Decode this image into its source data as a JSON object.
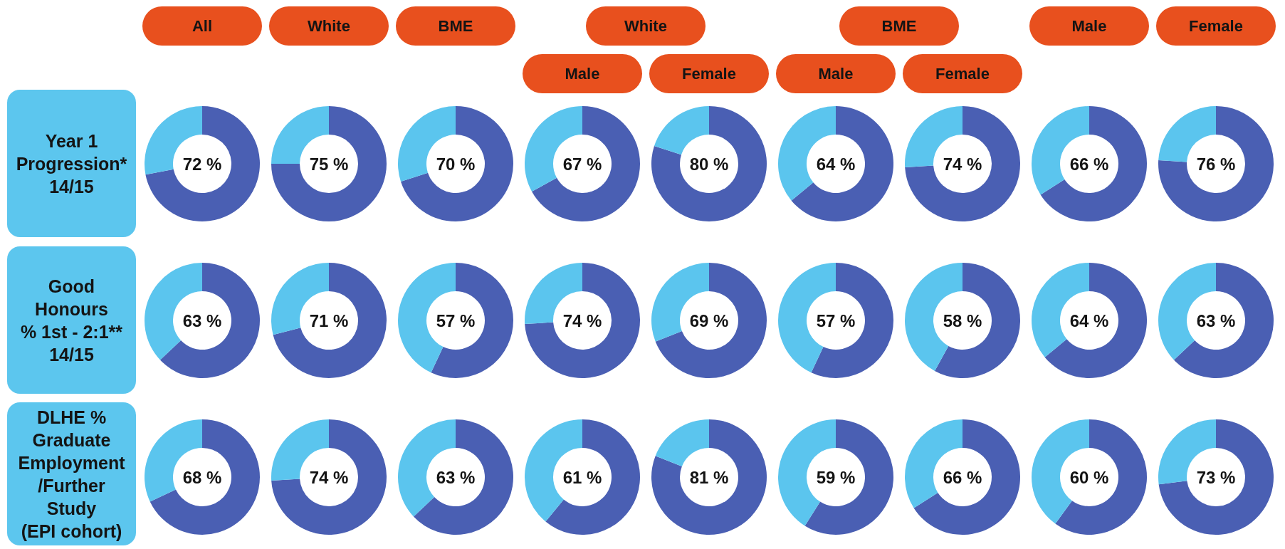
{
  "chart_data": [
    {
      "type": "other",
      "annotations": [
        "All",
        "White",
        "BME",
        "White",
        "BME",
        "Male",
        "Female"
      ]
    },
    {
      "type": "other",
      "annotations": [
        "Male",
        "Female",
        "Male",
        "Female"
      ]
    },
    {
      "type": "other",
      "title": "Year 1\nProgression*\n14/15"
    },
    {
      "type": "donut",
      "categories": [
        null,
        null
      ],
      "values": [
        72,
        28
      ],
      "colors": [
        "#4a5fb3",
        "#5bc5ee"
      ],
      "annotations": [
        "72 %"
      ]
    },
    {
      "type": "donut",
      "categories": [
        null,
        null
      ],
      "values": [
        75,
        25
      ],
      "colors": [
        "#4a5fb3",
        "#5bc5ee"
      ],
      "annotations": [
        "75 %"
      ]
    },
    {
      "type": "donut",
      "categories": [
        null,
        null
      ],
      "values": [
        70,
        30
      ],
      "colors": [
        "#4a5fb3",
        "#5bc5ee"
      ],
      "annotations": [
        "70 %"
      ]
    },
    {
      "type": "donut",
      "categories": [
        null,
        null
      ],
      "values": [
        67,
        33
      ],
      "colors": [
        "#4a5fb3",
        "#5bc5ee"
      ],
      "annotations": [
        "67 %"
      ]
    },
    {
      "type": "donut",
      "categories": [
        null,
        null
      ],
      "values": [
        80,
        20
      ],
      "colors": [
        "#4a5fb3",
        "#5bc5ee"
      ],
      "annotations": [
        "80 %"
      ]
    },
    {
      "type": "donut",
      "categories": [
        null,
        null
      ],
      "values": [
        64,
        36
      ],
      "colors": [
        "#4a5fb3",
        "#5bc5ee"
      ],
      "annotations": [
        "64 %"
      ]
    },
    {
      "type": "donut",
      "categories": [
        null,
        null
      ],
      "values": [
        74,
        26
      ],
      "colors": [
        "#4a5fb3",
        "#5bc5ee"
      ],
      "annotations": [
        "74 %"
      ]
    },
    {
      "type": "donut",
      "categories": [
        null,
        null
      ],
      "values": [
        66,
        34
      ],
      "colors": [
        "#4a5fb3",
        "#5bc5ee"
      ],
      "annotations": [
        "66 %"
      ]
    },
    {
      "type": "donut",
      "categories": [
        null,
        null
      ],
      "values": [
        76,
        24
      ],
      "colors": [
        "#4a5fb3",
        "#5bc5ee"
      ],
      "annotations": [
        "76 %"
      ]
    },
    {
      "type": "other",
      "title": "Good\nHonours\n% 1st - 2:1**\n14/15"
    },
    {
      "type": "donut",
      "categories": [
        null,
        null
      ],
      "values": [
        63,
        37
      ],
      "colors": [
        "#4a5fb3",
        "#5bc5ee"
      ],
      "annotations": [
        "63 %"
      ]
    },
    {
      "type": "donut",
      "categories": [
        null,
        null
      ],
      "values": [
        71,
        29
      ],
      "colors": [
        "#4a5fb3",
        "#5bc5ee"
      ],
      "annotations": [
        "71 %"
      ]
    },
    {
      "type": "donut",
      "categories": [
        null,
        null
      ],
      "values": [
        57,
        43
      ],
      "colors": [
        "#4a5fb3",
        "#5bc5ee"
      ],
      "annotations": [
        "57 %"
      ]
    },
    {
      "type": "donut",
      "categories": [
        null,
        null
      ],
      "values": [
        74,
        26
      ],
      "colors": [
        "#4a5fb3",
        "#5bc5ee"
      ],
      "annotations": [
        "74 %"
      ]
    },
    {
      "type": "donut",
      "categories": [
        null,
        null
      ],
      "values": [
        69,
        31
      ],
      "colors": [
        "#4a5fb3",
        "#5bc5ee"
      ],
      "annotations": [
        "69 %"
      ]
    },
    {
      "type": "donut",
      "categories": [
        null,
        null
      ],
      "values": [
        57,
        43
      ],
      "colors": [
        "#4a5fb3",
        "#5bc5ee"
      ],
      "annotations": [
        "57 %"
      ]
    },
    {
      "type": "donut",
      "categories": [
        null,
        null
      ],
      "values": [
        58,
        42
      ],
      "colors": [
        "#4a5fb3",
        "#5bc5ee"
      ],
      "annotations": [
        "58 %"
      ]
    },
    {
      "type": "donut",
      "categories": [
        null,
        null
      ],
      "values": [
        64,
        36
      ],
      "colors": [
        "#4a5fb3",
        "#5bc5ee"
      ],
      "annotations": [
        "64 %"
      ]
    },
    {
      "type": "donut",
      "categories": [
        null,
        null
      ],
      "values": [
        63,
        37
      ],
      "colors": [
        "#4a5fb3",
        "#5bc5ee"
      ],
      "annotations": [
        "63 %"
      ]
    },
    {
      "type": "other",
      "title": "DLHE %\nGraduate\nEmployment\n/Further\nStudy\n(EPI cohort)"
    },
    {
      "type": "donut",
      "categories": [
        null,
        null
      ],
      "values": [
        68,
        32
      ],
      "colors": [
        "#4a5fb3",
        "#5bc5ee"
      ],
      "annotations": [
        "68 %"
      ]
    },
    {
      "type": "donut",
      "categories": [
        null,
        null
      ],
      "values": [
        74,
        26
      ],
      "colors": [
        "#4a5fb3",
        "#5bc5ee"
      ],
      "annotations": [
        "74 %"
      ]
    },
    {
      "type": "donut",
      "categories": [
        null,
        null
      ],
      "values": [
        63,
        37
      ],
      "colors": [
        "#4a5fb3",
        "#5bc5ee"
      ],
      "annotations": [
        "63 %"
      ]
    },
    {
      "type": "donut",
      "categories": [
        null,
        null
      ],
      "values": [
        61,
        39
      ],
      "colors": [
        "#4a5fb3",
        "#5bc5ee"
      ],
      "annotations": [
        "61 %"
      ]
    },
    {
      "type": "donut",
      "categories": [
        null,
        null
      ],
      "values": [
        81,
        19
      ],
      "colors": [
        "#4a5fb3",
        "#5bc5ee"
      ],
      "annotations": [
        "81 %"
      ]
    },
    {
      "type": "donut",
      "categories": [
        null,
        null
      ],
      "values": [
        59,
        41
      ],
      "colors": [
        "#4a5fb3",
        "#5bc5ee"
      ],
      "annotations": [
        "59 %"
      ]
    },
    {
      "type": "donut",
      "categories": [
        null,
        null
      ],
      "values": [
        66,
        34
      ],
      "colors": [
        "#4a5fb3",
        "#5bc5ee"
      ],
      "annotations": [
        "66 %"
      ]
    },
    {
      "type": "donut",
      "categories": [
        null,
        null
      ],
      "values": [
        60,
        40
      ],
      "colors": [
        "#4a5fb3",
        "#5bc5ee"
      ],
      "annotations": [
        "60 %"
      ]
    },
    {
      "type": "donut",
      "categories": [
        null,
        null
      ],
      "values": [
        73,
        27
      ],
      "colors": [
        "#4a5fb3",
        "#5bc5ee"
      ],
      "annotations": [
        "73 %"
      ]
    }
  ]
}
